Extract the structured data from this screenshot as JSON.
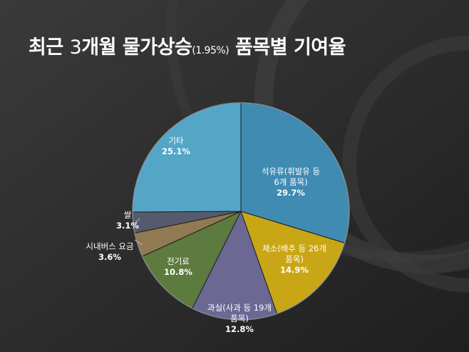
{
  "slide": {
    "title_main": "최근 ",
    "title_num": "3",
    "title_mid": "개월 물가상승",
    "title_small": "(1.95%)",
    "title_end": " 품목별 기여율"
  },
  "colors": {
    "background": "#2b2b2b",
    "title": "#ffffff"
  },
  "chart_data": {
    "type": "pie",
    "title": "최근 3개월 물가상승(1.95%) 품목별 기여율",
    "start": "top",
    "direction": "clockwise",
    "slices": [
      {
        "label_lines": [
          "석유류(휘발유 등",
          "6개 품목)",
          "29.7%"
        ],
        "value": 29.7,
        "color": "#3f8bb2"
      },
      {
        "label_lines": [
          "채소(배추 등 26개",
          "품목)",
          "14.9%"
        ],
        "value": 14.9,
        "color": "#c9a615"
      },
      {
        "label_lines": [
          "과실(사과 등 19개",
          "품목)",
          "12.8%"
        ],
        "value": 12.8,
        "color": "#6b6894"
      },
      {
        "label_lines": [
          "전기료",
          "10.8%"
        ],
        "value": 10.8,
        "color": "#5d7a3f"
      },
      {
        "label_lines": [
          "시내버스 요금",
          "3.6%"
        ],
        "value": 3.6,
        "color": "#8f7a52"
      },
      {
        "label_lines": [
          "쌀",
          "3.1%"
        ],
        "value": 3.1,
        "color": "#565a6d"
      },
      {
        "label_lines": [
          "기타",
          "25.1%"
        ],
        "value": 25.1,
        "color": "#54a6c7"
      }
    ]
  }
}
